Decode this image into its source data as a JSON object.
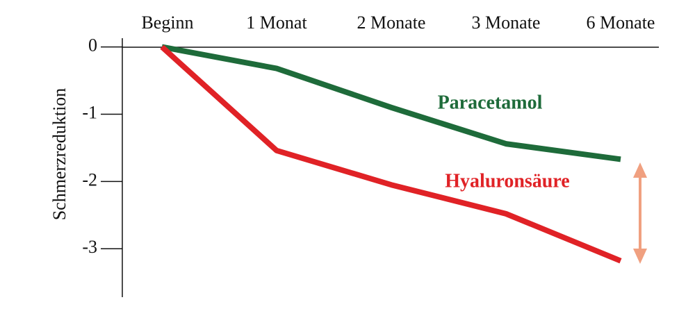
{
  "chart_data": {
    "type": "line",
    "categories": [
      "Beginn",
      "1 Monat",
      "2 Monate",
      "3 Monate",
      "6 Monate"
    ],
    "y_label": "Schmerzreduktion",
    "series": [
      {
        "name": "Paracetamol",
        "color": "#1e6b3a",
        "values": [
          0,
          -0.32,
          -0.9,
          -1.44,
          -1.67
        ]
      },
      {
        "name": "Hyaluronsäure",
        "color": "#e02226",
        "values": [
          0,
          -1.54,
          -2.05,
          -2.48,
          -3.18
        ]
      }
    ],
    "ylim": [
      -3.72,
      0.13
    ],
    "yticks": [
      0,
      -1,
      -2,
      -3
    ]
  }
}
